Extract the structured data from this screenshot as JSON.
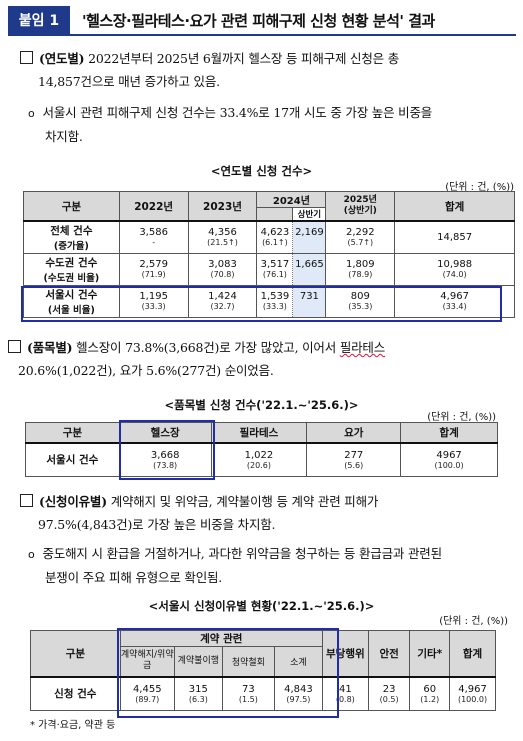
{
  "header": {
    "badge": "붙임 1",
    "title": "'헬스장·필라테스·요가 관련 피해구제 신청 현황 분석' 결과"
  },
  "section1": {
    "heading": "(연도별)",
    "text1": " 2022년부터 2025년 6월까지 헬스장 등 피해구제 신청은 총",
    "text2": "14,857건으로 매년 증가하고 있음.",
    "bullet": "o",
    "sub1": "서울시 관련 피해구제 신청 건수는 33.4%로 17개 시도 중 가장 높은 비중을",
    "sub2": "차지함."
  },
  "table1": {
    "title": "<연도별 신청 건수>",
    "unit": "(단위 : 건, (%))",
    "headers": [
      "구분",
      "2022년",
      "2023년",
      "2024년",
      "상반기",
      "2025년",
      "(상반기)",
      "합계"
    ],
    "rows": [
      {
        "label": "전체 건수",
        "sublabel": "(증가율)",
        "v2022": "3,586",
        "s2022": "-",
        "v2023": "4,356",
        "s2023": "(21.5↑)",
        "v2024": "4,623",
        "h2024": "2,169",
        "s2024": "(6.1↑)",
        "v2025": "2,292",
        "s2025": "(5.7↑)",
        "total": "14,857",
        "stotal": ""
      },
      {
        "label": "수도권 건수",
        "sublabel": "(수도권 비율)",
        "v2022": "2,579",
        "s2022": "(71.9)",
        "v2023": "3,083",
        "s2023": "(70.8)",
        "v2024": "3,517",
        "h2024": "1,665",
        "s2024": "(76.1)",
        "v2025": "1,809",
        "s2025": "(78.9)",
        "total": "10,988",
        "stotal": "(74.0)"
      },
      {
        "label": "서울시 건수",
        "sublabel": "(서울 비율)",
        "v2022": "1,195",
        "s2022": "(33.3)",
        "v2023": "1,424",
        "s2023": "(32.7)",
        "v2024": "1,539",
        "h2024": "731",
        "s2024": "(33.3)",
        "v2025": "809",
        "s2025": "(35.3)",
        "total": "4,967",
        "stotal": "(33.4)"
      }
    ]
  },
  "section2": {
    "heading": "(품목별)",
    "text1a": " 헬스장이 73.8%(3,668건)로 가장 많았고, 이어서 ",
    "text1b": "필라테스",
    "text2a": "20.6%(1,022건), 요가 5.6%(277건) 순이었음."
  },
  "table2": {
    "title": "<품목별 신청 건수('22.1.~'25.6.)>",
    "unit": "(단위 : 건, (%))",
    "headers": [
      "구분",
      "헬스장",
      "필라테스",
      "요가",
      "합계"
    ],
    "row": {
      "label": "서울시 건수",
      "values": [
        "3,668",
        "1,022",
        "277",
        "4967"
      ],
      "pcts": [
        "(73.8)",
        "(20.6)",
        "(5.6)",
        "(100.0)"
      ]
    }
  },
  "section3": {
    "heading": "(신청이유별)",
    "text1": " 계약해지 및 위약금, 계약불이행 등 계약 관련 피해가",
    "text2": "97.5%(4,843건)로 가장 높은 비중을 차지함.",
    "bullet": "o",
    "sub1": "중도해지 시 환급을 거절하거나, 과다한 위약금을 청구하는 등 환급금과 관련된",
    "sub2": "분쟁이 주요 피해 유형으로 확인됨."
  },
  "table3": {
    "title": "<서울시 신청이유별 현황('22.1.~'25.6.)>",
    "unit": "(단위 : 건, (%))",
    "group_header": "계약 관련",
    "headers": [
      "구분",
      "계약해지/위약금",
      "계약불이행",
      "청약철회",
      "소계",
      "부당행위",
      "안전",
      "기타*",
      "합계"
    ],
    "row": {
      "label": "신청 건수",
      "values": [
        "4,455",
        "315",
        "73",
        "4,843",
        "41",
        "23",
        "60",
        "4,967"
      ],
      "pcts": [
        "(89.7)",
        "(6.3)",
        "(1.5)",
        "(97.5)",
        "(0.8)",
        "(0.5)",
        "(1.2)",
        "(100.0)"
      ]
    }
  },
  "footnote": "* 가격·요금, 약관 등"
}
